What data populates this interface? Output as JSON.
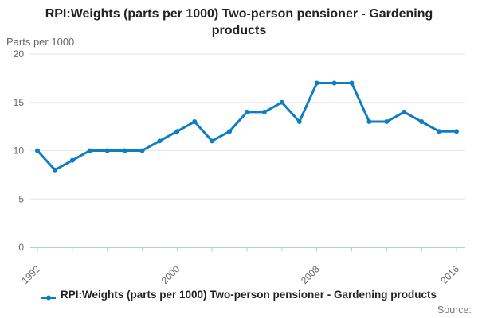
{
  "header": {
    "title": "RPI:Weights (parts per 1000) Two-person pensioner - Gardening products"
  },
  "y_axis_unit_label": "Parts per 1000",
  "legend": {
    "symbol": "line-with-marker-icon",
    "label": "RPI:Weights (parts per 1000) Two-person pensioner - Gardening products"
  },
  "source_label": "Source:",
  "colors": {
    "series": "#0e7dc2",
    "grid": "#e6e6e6",
    "axis": "#b9c7d6",
    "tick_text": "#666666",
    "title_text": "#222222",
    "source_text": "#777777"
  },
  "chart_data": {
    "type": "line",
    "title": "RPI:Weights (parts per 1000) Two-person pensioner - Gardening products",
    "xlabel": "",
    "ylabel": "Parts per 1000",
    "x": [
      1992,
      1993,
      1994,
      1995,
      1996,
      1997,
      1998,
      1999,
      2000,
      2001,
      2002,
      2003,
      2004,
      2005,
      2006,
      2007,
      2008,
      2009,
      2010,
      2011,
      2012,
      2013,
      2014,
      2015,
      2016
    ],
    "series": [
      {
        "name": "RPI:Weights (parts per 1000) Two-person pensioner - Gardening products",
        "values": [
          10,
          8,
          9,
          10,
          10,
          10,
          10,
          11,
          12,
          13,
          11,
          12,
          14,
          14,
          15,
          13,
          17,
          17,
          17,
          13,
          13,
          14,
          13,
          12,
          12
        ]
      }
    ],
    "ylim": [
      0,
      20
    ],
    "y_ticks": [
      0,
      5,
      10,
      15,
      20
    ],
    "x_tick_interval": 2,
    "x_tick_labels": [
      "1992",
      "2000",
      "2008",
      "2016"
    ],
    "grid": "horizontal",
    "legend_position": "bottom",
    "markers": true
  }
}
